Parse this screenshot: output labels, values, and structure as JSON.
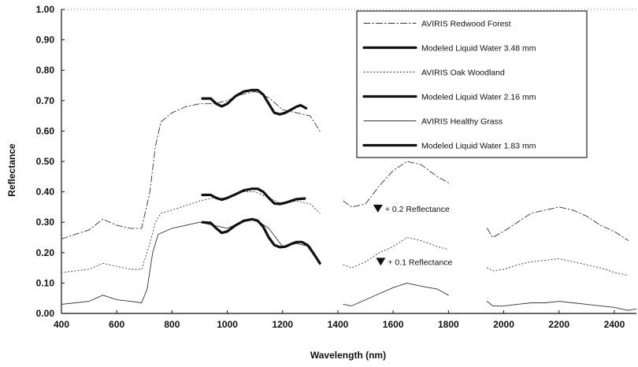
{
  "chart_data": {
    "type": "line",
    "title": "",
    "xlabel": "Wavelength (nm)",
    "ylabel": "Reflectance",
    "xlim": [
      400,
      2480
    ],
    "ylim": [
      0,
      1
    ],
    "x_ticks": [
      400,
      600,
      800,
      1000,
      1200,
      1400,
      1600,
      1800,
      2000,
      2200,
      2400
    ],
    "x_tick_labels": [
      "400",
      "600",
      "800",
      "1000",
      "1200",
      "1400",
      "1600",
      "1800",
      "2000",
      "2200",
      "2400"
    ],
    "y_ticks": [
      0,
      0.1,
      0.2,
      0.3,
      0.4,
      0.5,
      0.6,
      0.7,
      0.8,
      0.9,
      1.0
    ],
    "y_tick_labels": [
      "0.00",
      "0.10",
      "0.20",
      "0.30",
      "0.40",
      "0.50",
      "0.60",
      "0.70",
      "0.80",
      "0.90",
      "1.00"
    ],
    "grid": false,
    "legend_position": "top-right",
    "series": [
      {
        "name": "AVIRIS Redwood Forest",
        "style": "dash-dot",
        "width": "thin",
        "segments": [
          [
            [
              400,
              0.245
            ],
            [
              450,
              0.26
            ],
            [
              500,
              0.275
            ],
            [
              550,
              0.31
            ],
            [
              600,
              0.29
            ],
            [
              650,
              0.28
            ],
            [
              690,
              0.28
            ],
            [
              720,
              0.4
            ],
            [
              740,
              0.55
            ],
            [
              760,
              0.63
            ],
            [
              800,
              0.66
            ],
            [
              850,
              0.68
            ],
            [
              900,
              0.69
            ],
            [
              950,
              0.69
            ],
            [
              1000,
              0.7
            ],
            [
              1050,
              0.72
            ],
            [
              1100,
              0.73
            ],
            [
              1150,
              0.71
            ],
            [
              1200,
              0.67
            ],
            [
              1250,
              0.66
            ],
            [
              1300,
              0.65
            ],
            [
              1335,
              0.6
            ]
          ],
          [
            [
              1420,
              0.37
            ],
            [
              1450,
              0.35
            ],
            [
              1500,
              0.36
            ],
            [
              1550,
              0.42
            ],
            [
              1600,
              0.47
            ],
            [
              1650,
              0.5
            ],
            [
              1700,
              0.49
            ],
            [
              1760,
              0.45
            ],
            [
              1800,
              0.43
            ]
          ],
          [
            [
              1940,
              0.28
            ],
            [
              1960,
              0.25
            ],
            [
              2000,
              0.27
            ],
            [
              2050,
              0.3
            ],
            [
              2100,
              0.33
            ],
            [
              2150,
              0.34
            ],
            [
              2200,
              0.35
            ],
            [
              2250,
              0.34
            ],
            [
              2300,
              0.32
            ],
            [
              2350,
              0.29
            ],
            [
              2400,
              0.27
            ],
            [
              2450,
              0.24
            ]
          ]
        ]
      },
      {
        "name": "Modeled Liquid Water 3.48 mm",
        "style": "solid",
        "width": "thick",
        "segments": [
          [
            [
              910,
              0.707
            ],
            [
              940,
              0.707
            ],
            [
              960,
              0.69
            ],
            [
              980,
              0.681
            ],
            [
              1000,
              0.69
            ],
            [
              1030,
              0.715
            ],
            [
              1060,
              0.73
            ],
            [
              1090,
              0.735
            ],
            [
              1110,
              0.735
            ],
            [
              1130,
              0.72
            ],
            [
              1150,
              0.69
            ],
            [
              1170,
              0.66
            ],
            [
              1190,
              0.655
            ],
            [
              1210,
              0.66
            ],
            [
              1230,
              0.67
            ],
            [
              1250,
              0.68
            ],
            [
              1265,
              0.685
            ],
            [
              1285,
              0.675
            ]
          ]
        ]
      },
      {
        "name": "AVIRIS Oak Woodland",
        "style": "dotted",
        "width": "thin",
        "segments": [
          [
            [
              400,
              0.135
            ],
            [
              450,
              0.14
            ],
            [
              500,
              0.145
            ],
            [
              550,
              0.165
            ],
            [
              600,
              0.155
            ],
            [
              650,
              0.145
            ],
            [
              690,
              0.145
            ],
            [
              720,
              0.23
            ],
            [
              740,
              0.3
            ],
            [
              760,
              0.33
            ],
            [
              800,
              0.34
            ],
            [
              850,
              0.355
            ],
            [
              900,
              0.37
            ],
            [
              950,
              0.38
            ],
            [
              1000,
              0.38
            ],
            [
              1050,
              0.4
            ],
            [
              1100,
              0.4
            ],
            [
              1150,
              0.38
            ],
            [
              1200,
              0.36
            ],
            [
              1250,
              0.37
            ],
            [
              1300,
              0.36
            ],
            [
              1335,
              0.33
            ]
          ],
          [
            [
              1420,
              0.16
            ],
            [
              1450,
              0.15
            ],
            [
              1500,
              0.17
            ],
            [
              1550,
              0.2
            ],
            [
              1600,
              0.22
            ],
            [
              1650,
              0.25
            ],
            [
              1700,
              0.24
            ],
            [
              1760,
              0.22
            ],
            [
              1800,
              0.21
            ]
          ],
          [
            [
              1940,
              0.15
            ],
            [
              1960,
              0.14
            ],
            [
              2000,
              0.145
            ],
            [
              2050,
              0.16
            ],
            [
              2100,
              0.17
            ],
            [
              2150,
              0.175
            ],
            [
              2200,
              0.18
            ],
            [
              2250,
              0.17
            ],
            [
              2300,
              0.16
            ],
            [
              2350,
              0.15
            ],
            [
              2400,
              0.135
            ],
            [
              2450,
              0.125
            ]
          ]
        ]
      },
      {
        "name": "Modeled Liquid Water 2.16 mm",
        "style": "solid",
        "width": "thick",
        "segments": [
          [
            [
              910,
              0.39
            ],
            [
              940,
              0.39
            ],
            [
              960,
              0.38
            ],
            [
              980,
              0.374
            ],
            [
              1000,
              0.38
            ],
            [
              1030,
              0.392
            ],
            [
              1060,
              0.405
            ],
            [
              1090,
              0.41
            ],
            [
              1110,
              0.41
            ],
            [
              1130,
              0.4
            ],
            [
              1150,
              0.38
            ],
            [
              1170,
              0.362
            ],
            [
              1190,
              0.36
            ],
            [
              1210,
              0.364
            ],
            [
              1230,
              0.37
            ],
            [
              1250,
              0.376
            ],
            [
              1280,
              0.378
            ]
          ]
        ]
      },
      {
        "name": "AVIRIS Healthy Grass",
        "style": "solid",
        "width": "thin",
        "segments": [
          [
            [
              400,
              0.03
            ],
            [
              450,
              0.035
            ],
            [
              500,
              0.04
            ],
            [
              550,
              0.06
            ],
            [
              600,
              0.045
            ],
            [
              650,
              0.04
            ],
            [
              690,
              0.035
            ],
            [
              710,
              0.08
            ],
            [
              730,
              0.2
            ],
            [
              750,
              0.26
            ],
            [
              800,
              0.28
            ],
            [
              850,
              0.29
            ],
            [
              900,
              0.3
            ],
            [
              950,
              0.29
            ],
            [
              1000,
              0.28
            ],
            [
              1050,
              0.3
            ],
            [
              1100,
              0.31
            ],
            [
              1150,
              0.28
            ],
            [
              1200,
              0.22
            ],
            [
              1250,
              0.23
            ],
            [
              1300,
              0.22
            ],
            [
              1335,
              0.16
            ]
          ],
          [
            [
              1420,
              0.03
            ],
            [
              1450,
              0.025
            ],
            [
              1500,
              0.045
            ],
            [
              1550,
              0.065
            ],
            [
              1600,
              0.085
            ],
            [
              1650,
              0.1
            ],
            [
              1700,
              0.09
            ],
            [
              1760,
              0.08
            ],
            [
              1800,
              0.06
            ]
          ],
          [
            [
              1940,
              0.04
            ],
            [
              1960,
              0.025
            ],
            [
              2000,
              0.025
            ],
            [
              2050,
              0.03
            ],
            [
              2100,
              0.035
            ],
            [
              2150,
              0.035
            ],
            [
              2200,
              0.04
            ],
            [
              2250,
              0.035
            ],
            [
              2300,
              0.03
            ],
            [
              2350,
              0.025
            ],
            [
              2400,
              0.02
            ],
            [
              2450,
              0.01
            ],
            [
              2480,
              0.015
            ]
          ]
        ]
      },
      {
        "name": "Modeled Liquid Water 1.83 mm",
        "style": "solid",
        "width": "thick",
        "segments": [
          [
            [
              910,
              0.3
            ],
            [
              940,
              0.298
            ],
            [
              960,
              0.28
            ],
            [
              980,
              0.265
            ],
            [
              1000,
              0.27
            ],
            [
              1030,
              0.29
            ],
            [
              1060,
              0.305
            ],
            [
              1090,
              0.31
            ],
            [
              1110,
              0.305
            ],
            [
              1130,
              0.285
            ],
            [
              1150,
              0.25
            ],
            [
              1170,
              0.225
            ],
            [
              1190,
              0.218
            ],
            [
              1210,
              0.22
            ],
            [
              1230,
              0.228
            ],
            [
              1250,
              0.235
            ],
            [
              1270,
              0.235
            ],
            [
              1290,
              0.225
            ],
            [
              1310,
              0.2
            ],
            [
              1335,
              0.165
            ]
          ]
        ]
      }
    ],
    "annotations": [
      {
        "text": "+ 0.2 Reflectance",
        "x": 1545,
        "y": 0.345
      },
      {
        "text": "+ 0.1 Reflectance",
        "x": 1555,
        "y": 0.17
      }
    ]
  }
}
